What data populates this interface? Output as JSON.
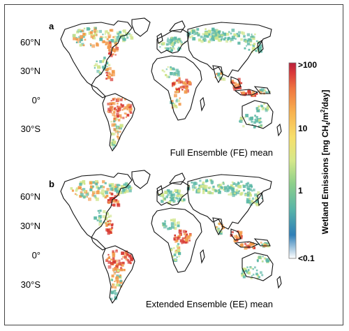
{
  "panels": [
    {
      "letter": "a",
      "caption": "Full Ensemble (FE) mean",
      "lat_labels": [
        "60°N",
        "30°N",
        "0°",
        "30°S"
      ]
    },
    {
      "letter": "b",
      "caption": "Extended Ensemble (EE) mean",
      "lat_labels": [
        "60°N",
        "30°N",
        "0°",
        "30°S"
      ]
    }
  ],
  "colorbar": {
    "title_main": "Wetland Emissions [mg CH",
    "title_sub4": "4",
    "title_mid": "/m",
    "title_sup2": "2",
    "title_end": "/day]",
    "ticks": [
      ">100",
      "10",
      "1",
      "<0.1"
    ],
    "colors": [
      "#ffffff",
      "#2f7fb8",
      "#58b4a8",
      "#8ccf8a",
      "#d5e88a",
      "#f7df6a",
      "#f8b14f",
      "#ef7440",
      "#d9383a",
      "#b81f3a"
    ]
  },
  "palette": {
    "low": "#5cb8a6",
    "mid": "#cfe58a",
    "high": "#f29a4a",
    "max": "#d73a34"
  }
}
